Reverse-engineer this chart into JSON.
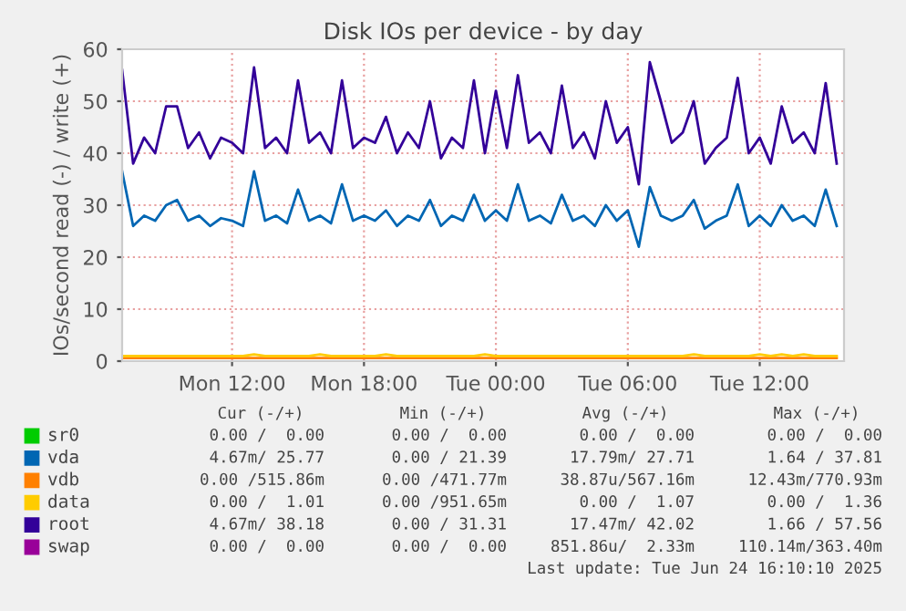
{
  "chart_data": {
    "type": "line",
    "title": "Disk IOs per device - by day",
    "ylabel": "IOs/second read (-) / write (+)",
    "x": [
      "2025-06-23T07:00",
      "2025-06-23T07:30",
      "2025-06-23T08:00",
      "2025-06-23T08:30",
      "2025-06-23T09:00",
      "2025-06-23T09:30",
      "2025-06-23T10:00",
      "2025-06-23T10:30",
      "2025-06-23T11:00",
      "2025-06-23T11:30",
      "2025-06-23T12:00",
      "2025-06-23T12:30",
      "2025-06-23T13:00",
      "2025-06-23T13:30",
      "2025-06-23T14:00",
      "2025-06-23T14:30",
      "2025-06-23T15:00",
      "2025-06-23T15:30",
      "2025-06-23T16:00",
      "2025-06-23T16:30",
      "2025-06-23T17:00",
      "2025-06-23T17:30",
      "2025-06-23T18:00",
      "2025-06-23T18:30",
      "2025-06-23T19:00",
      "2025-06-23T19:30",
      "2025-06-23T20:00",
      "2025-06-23T20:30",
      "2025-06-23T21:00",
      "2025-06-23T21:30",
      "2025-06-23T22:00",
      "2025-06-23T22:30",
      "2025-06-23T23:00",
      "2025-06-23T23:30",
      "2025-06-24T00:00",
      "2025-06-24T00:30",
      "2025-06-24T01:00",
      "2025-06-24T01:30",
      "2025-06-24T02:00",
      "2025-06-24T02:30",
      "2025-06-24T03:00",
      "2025-06-24T03:30",
      "2025-06-24T04:00",
      "2025-06-24T04:30",
      "2025-06-24T05:00",
      "2025-06-24T05:30",
      "2025-06-24T06:00",
      "2025-06-24T06:30",
      "2025-06-24T07:00",
      "2025-06-24T07:30",
      "2025-06-24T08:00",
      "2025-06-24T08:30",
      "2025-06-24T09:00",
      "2025-06-24T09:30",
      "2025-06-24T10:00",
      "2025-06-24T10:30",
      "2025-06-24T11:00",
      "2025-06-24T11:30",
      "2025-06-24T12:00",
      "2025-06-24T12:30",
      "2025-06-24T13:00",
      "2025-06-24T13:30",
      "2025-06-24T14:00",
      "2025-06-24T14:30",
      "2025-06-24T15:00",
      "2025-06-24T15:30"
    ],
    "xlim": [
      "2025-06-23T07:00",
      "2025-06-24T15:50"
    ],
    "xticks": [
      {
        "value": "2025-06-23T12:00",
        "label": "Mon 12:00"
      },
      {
        "value": "2025-06-23T18:00",
        "label": "Mon 18:00"
      },
      {
        "value": "2025-06-24T00:00",
        "label": "Tue 00:00"
      },
      {
        "value": "2025-06-24T06:00",
        "label": "Tue 06:00"
      },
      {
        "value": "2025-06-24T12:00",
        "label": "Tue 12:00"
      }
    ],
    "ylim": [
      0,
      60
    ],
    "yticks": [
      0,
      10,
      20,
      30,
      40,
      50,
      60
    ],
    "grid": true,
    "legend": "bottom",
    "series": [
      {
        "name": "sr0",
        "color": "#00cc00",
        "values": [
          null,
          null,
          null,
          null,
          null,
          null,
          null,
          null,
          null,
          null,
          null,
          null,
          null,
          null,
          null,
          null,
          null,
          null,
          null,
          null,
          null,
          null,
          null,
          null,
          null,
          null,
          null,
          null,
          null,
          null,
          null,
          null,
          null,
          null,
          null,
          null,
          null,
          null,
          null,
          null,
          null,
          null,
          null,
          null,
          null,
          null,
          null,
          null,
          null,
          null,
          null,
          null,
          null,
          null,
          null,
          null,
          null,
          null,
          null,
          null,
          null,
          null,
          null,
          null,
          null,
          null
        ]
      },
      {
        "name": "vda",
        "color": "#0066b3",
        "values": [
          36.5,
          26,
          28,
          27,
          30,
          31,
          27,
          28,
          26,
          27.5,
          27,
          26,
          36.5,
          27,
          28,
          26.5,
          33,
          27,
          28,
          26.5,
          34,
          27,
          28,
          27,
          29,
          26,
          28,
          27,
          31,
          26,
          28,
          27,
          32,
          27,
          29,
          27,
          34,
          27,
          28,
          26.5,
          32,
          27,
          28,
          26,
          30,
          27,
          29,
          22,
          33.5,
          28,
          27,
          28,
          31,
          25.5,
          27,
          28,
          34,
          26,
          28,
          26,
          30,
          27,
          28,
          26,
          33,
          26
        ]
      },
      {
        "name": "vdb",
        "color": "#ff8000",
        "values": [
          0.6,
          0.6,
          0.6,
          0.6,
          0.6,
          0.6,
          0.6,
          0.6,
          0.6,
          0.6,
          0.6,
          0.6,
          0.6,
          0.6,
          0.6,
          0.6,
          0.6,
          0.6,
          0.6,
          0.6,
          0.6,
          0.6,
          0.6,
          0.6,
          0.6,
          0.6,
          0.6,
          0.6,
          0.6,
          0.6,
          0.6,
          0.6,
          0.6,
          0.6,
          0.6,
          0.6,
          0.6,
          0.6,
          0.6,
          0.6,
          0.6,
          0.6,
          0.6,
          0.6,
          0.6,
          0.6,
          0.6,
          0.6,
          0.6,
          0.6,
          0.6,
          0.6,
          0.6,
          0.6,
          0.6,
          0.6,
          0.6,
          0.6,
          0.6,
          0.6,
          0.6,
          0.6,
          0.6,
          0.6,
          0.6,
          0.6
        ]
      },
      {
        "name": "data",
        "color": "#ffcc00",
        "values": [
          1.0,
          1.0,
          1.0,
          1.0,
          1.0,
          1.0,
          1.0,
          1.0,
          1.0,
          1.0,
          1.0,
          1.0,
          1.3,
          1.0,
          1.0,
          1.0,
          1.0,
          1.0,
          1.3,
          1.0,
          1.0,
          1.0,
          1.0,
          1.0,
          1.3,
          1.0,
          1.0,
          1.0,
          1.0,
          1.0,
          1.0,
          1.0,
          1.0,
          1.3,
          1.0,
          1.0,
          1.0,
          1.0,
          1.0,
          1.0,
          1.0,
          1.0,
          1.0,
          1.0,
          1.0,
          1.0,
          1.0,
          1.0,
          1.0,
          1.0,
          1.0,
          1.0,
          1.3,
          1.0,
          1.0,
          1.0,
          1.0,
          1.0,
          1.3,
          1.0,
          1.3,
          1.0,
          1.3,
          1.0,
          1.0,
          1.0
        ]
      },
      {
        "name": "root",
        "color": "#330099",
        "values": [
          56,
          38,
          43,
          40,
          49,
          49,
          41,
          44,
          39,
          43,
          42,
          40,
          56.5,
          41,
          43,
          40,
          54,
          42,
          44,
          40,
          54,
          41,
          43,
          42,
          47,
          40,
          44,
          41,
          50,
          39,
          43,
          41,
          54,
          40,
          52,
          41,
          55,
          42,
          44,
          40,
          53,
          41,
          44,
          39,
          50,
          42,
          45,
          34,
          57.5,
          50,
          42,
          44,
          50,
          38,
          41,
          43,
          54.5,
          40,
          43,
          38,
          49,
          42,
          44,
          40,
          53.5,
          38
        ]
      },
      {
        "name": "swap",
        "color": "#990099",
        "values": [
          null,
          null,
          null,
          null,
          null,
          null,
          null,
          null,
          null,
          null,
          null,
          null,
          null,
          null,
          null,
          null,
          null,
          null,
          null,
          null,
          null,
          null,
          null,
          null,
          null,
          null,
          null,
          null,
          null,
          null,
          null,
          null,
          null,
          null,
          null,
          null,
          null,
          null,
          null,
          null,
          null,
          null,
          null,
          null,
          null,
          null,
          null,
          null,
          null,
          null,
          null,
          null,
          null,
          null,
          null,
          null,
          null,
          null,
          null,
          null,
          null,
          null,
          null,
          null,
          null,
          null
        ]
      }
    ],
    "annotations": [
      "Cur (-/+)",
      "Min (-/+)",
      "Avg (-/+)",
      "Max (-/+)",
      "0.00 /  0.00",
      "0.00 /  0.00",
      "0.00 /  0.00",
      "0.00 /  0.00",
      "4.67m/ 25.77",
      "0.00 / 21.39",
      "17.79m/ 27.71",
      "1.64 / 37.81",
      "0.00 /515.86m",
      "0.00 /471.77m",
      "38.87u/567.16m",
      "12.43m/770.93m",
      "0.00 /  1.01",
      "0.00 /951.65m",
      "0.00 /  1.07",
      "0.00 /  1.36",
      "4.67m/ 38.18",
      "0.00 / 31.31",
      "17.47m/ 42.02",
      "1.66 / 57.56",
      "0.00 /  0.00",
      "0.00 /  0.00",
      "851.86u/  2.33m",
      "110.14m/363.40m",
      "Last update: Tue Jun 24 16:10:10 2025"
    ]
  }
}
